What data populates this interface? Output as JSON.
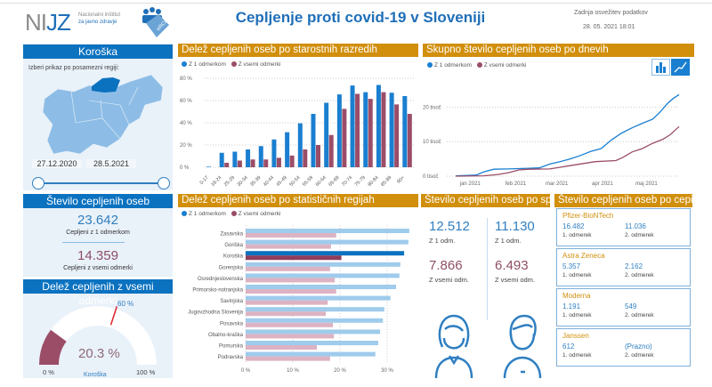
{
  "header": {
    "logo_text": "NIJZ",
    "logo_sub1": "Nacionalni inštitut",
    "logo_sub2": "za javno zdravje",
    "logo2_text": "eRCO",
    "title": "Cepljenje proti covid-19 v Sloveniji",
    "refresh_label": "Zadnja osvežitev podatkov",
    "refresh_time": "28. 05. 2021 18:01"
  },
  "region_panel": {
    "title": "Koroška",
    "prompt": "Izberi prikaz po posamezni regiji:",
    "date_from": "27.12.2020",
    "date_to": "28.5.2021",
    "selected_color": "#0b72c0",
    "map_color": "#8dbde6"
  },
  "count_panel": {
    "title": "Število cepljenih oseb",
    "first": "23.642",
    "first_label": "Cepljeni z 1 odmerkom",
    "all": "14.359",
    "all_label": "Cepljeni z vsemi odmerki"
  },
  "gauge_panel": {
    "title": "Delež cepljenih z vsemi odmerki",
    "value": 20.3,
    "value_label": "20.3 %",
    "target": 60,
    "target_label": "60 %",
    "min_label": "0 %",
    "max_label": "100 %",
    "region": "Koroška"
  },
  "legend": {
    "first": "Z 1 odmerkom",
    "all": "Z vsemi odmerki",
    "first_color": "#1a7fd0",
    "all_color": "#9b4d68"
  },
  "chart_data": [
    {
      "type": "bar",
      "title": "Delež cepljenih oseb po starostnih razredih",
      "categories": [
        "0-17",
        "18-24",
        "25-29",
        "30-34",
        "35-39",
        "40-44",
        "45-49",
        "50-54",
        "55-59",
        "60-64",
        "65-69",
        "70-74",
        "75-79",
        "80-84",
        "85-89",
        "90+"
      ],
      "series": [
        {
          "name": "Z 1 odmerkom",
          "values": [
            0.5,
            13,
            14,
            16,
            19,
            25,
            31.5,
            39.5,
            48,
            58,
            65.5,
            73.5,
            67.5,
            74,
            67,
            64
          ]
        },
        {
          "name": "Z vsemi odmerki",
          "values": [
            0,
            4,
            6,
            7,
            7,
            8.5,
            10.5,
            16,
            20,
            29,
            52.5,
            66,
            61.5,
            67.5,
            56.5,
            48
          ]
        }
      ],
      "yticks": [
        "0 %",
        "20 %",
        "40 %",
        "60 %",
        "80 %"
      ],
      "ylim": [
        0,
        80
      ],
      "grid": true,
      "legend": "top-left"
    },
    {
      "type": "line",
      "title": "Skupno število cepljenih oseb po dnevih",
      "xticks": [
        "jan 2021",
        "feb 2021",
        "mar 2021",
        "apr 2021",
        "maj 2021"
      ],
      "yticks": [
        "0 tisoč",
        "10 tisoč",
        "20 tisoč"
      ],
      "ylim": [
        0,
        25000
      ],
      "xlim": [
        "2020-12-27",
        "2021-05-28"
      ],
      "series": [
        {
          "name": "Z 1 odmerkom",
          "points": [
            [
              "2020-12-27",
              100
            ],
            [
              "2021-01-10",
              300
            ],
            [
              "2021-01-15",
              1200
            ],
            [
              "2021-01-22",
              2000
            ],
            [
              "2021-02-01",
              2100
            ],
            [
              "2021-02-15",
              2300
            ],
            [
              "2021-02-22",
              2400
            ],
            [
              "2021-03-01",
              3500
            ],
            [
              "2021-03-08",
              4200
            ],
            [
              "2021-03-15",
              5000
            ],
            [
              "2021-03-22",
              6000
            ],
            [
              "2021-03-29",
              7200
            ],
            [
              "2021-04-05",
              8000
            ],
            [
              "2021-04-12",
              10500
            ],
            [
              "2021-04-19",
              12500
            ],
            [
              "2021-04-26",
              14000
            ],
            [
              "2021-05-03",
              15300
            ],
            [
              "2021-05-10",
              16500
            ],
            [
              "2021-05-15",
              18500
            ],
            [
              "2021-05-20",
              21000
            ],
            [
              "2021-05-24",
              22500
            ],
            [
              "2021-05-28",
              23642
            ]
          ]
        },
        {
          "name": "Z vsemi odmerki",
          "points": [
            [
              "2020-12-27",
              0
            ],
            [
              "2021-01-15",
              100
            ],
            [
              "2021-01-25",
              500
            ],
            [
              "2021-02-01",
              1000
            ],
            [
              "2021-02-08",
              1800
            ],
            [
              "2021-02-15",
              2000
            ],
            [
              "2021-03-01",
              2100
            ],
            [
              "2021-03-10",
              2700
            ],
            [
              "2021-03-20",
              3400
            ],
            [
              "2021-04-01",
              4200
            ],
            [
              "2021-04-15",
              4500
            ],
            [
              "2021-04-20",
              5500
            ],
            [
              "2021-04-26",
              7000
            ],
            [
              "2021-05-03",
              8000
            ],
            [
              "2021-05-10",
              9500
            ],
            [
              "2021-05-17",
              10700
            ],
            [
              "2021-05-22",
              12000
            ],
            [
              "2021-05-28",
              14359
            ]
          ]
        }
      ],
      "grid": true,
      "legend": "top-left",
      "view_toggle": [
        "bar-chart-view",
        "line-chart-view"
      ],
      "active_view": "line-chart-view"
    },
    {
      "type": "bar",
      "orientation": "horizontal",
      "title": "Delež cepljenih oseb po statističnih regijah",
      "categories": [
        "Zasavska",
        "Goriška",
        "Koroška",
        "Gorenjska",
        "Osrednjeslovenska",
        "Primorsko-notranjska",
        "Savinjska",
        "Jugovzhodna Slovenija",
        "Posavska",
        "Obalno-kraška",
        "Pomurska",
        "Podravska"
      ],
      "series": [
        {
          "name": "Z 1 odmerkom",
          "values": [
            34.7,
            34.5,
            33.6,
            32.8,
            32.6,
            31.9,
            30.7,
            29.4,
            29.1,
            28.5,
            28.1,
            27.5
          ]
        },
        {
          "name": "Z vsemi odmerki",
          "values": [
            19.2,
            18.1,
            20.3,
            17.9,
            18.9,
            19.2,
            17.4,
            17.0,
            18.5,
            18.7,
            15.1,
            17.9
          ]
        }
      ],
      "highlighted": "Koroška",
      "xticks": [
        "0 %",
        "10 %",
        "20 %",
        "30 %"
      ],
      "xlim": [
        0,
        36
      ],
      "legend": "top-left"
    }
  ],
  "gender_panel": {
    "title": "Število cepljenih oseb po spolu",
    "female": {
      "first": "12.512",
      "first_label": "Z 1 odm.",
      "all": "7.866",
      "all_label": "Z vsemi odm."
    },
    "male": {
      "first": "11.130",
      "first_label": "Z 1 odm.",
      "all": "6.493",
      "all_label": "Z vsemi odm."
    }
  },
  "vaccine_panel": {
    "title": "Število cepljenih oseb po cepivu",
    "dose1_label": "1. odmerek",
    "dose2_label": "2. odmerek",
    "vaccines": [
      {
        "name": "Pfizer-BioNTech",
        "dose1": "16.482",
        "dose2": "11.036"
      },
      {
        "name": "Astra Zeneca",
        "dose1": "5.357",
        "dose2": "2.162"
      },
      {
        "name": "Moderna",
        "dose1": "1.191",
        "dose2": "549"
      },
      {
        "name": "Janssen",
        "dose1": "612",
        "dose2": "(Prazno)"
      }
    ]
  }
}
